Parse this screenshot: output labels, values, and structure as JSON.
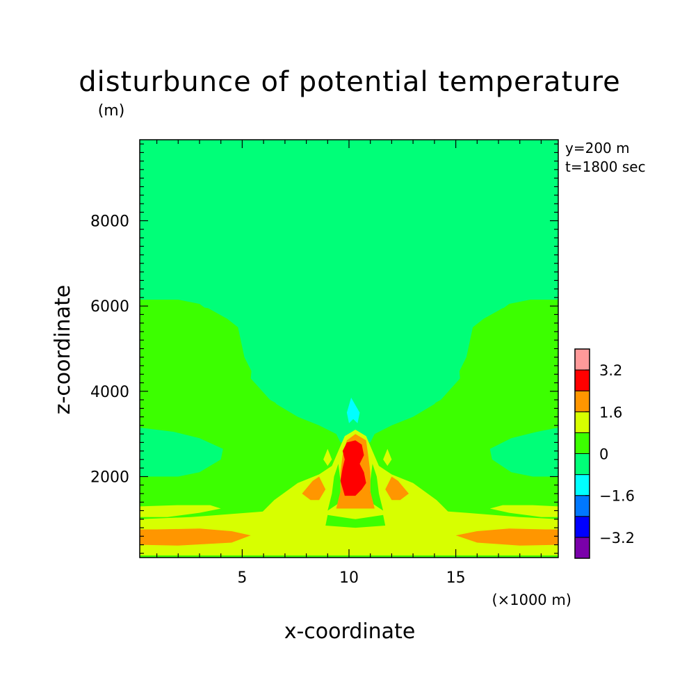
{
  "chart_data": {
    "type": "heatmap",
    "title": "disturbunce of potential temperature",
    "unit_label": "(m)",
    "xlabel": "x-coordinate",
    "ylabel": "z-coordinate",
    "x_multiplier_label": "(×1000 m)",
    "annotations": [
      "y=200 m",
      "t=1800 sec"
    ],
    "xlim": [
      0.2,
      19.8
    ],
    "ylim": [
      100,
      9900
    ],
    "x_ticks": [
      5,
      10,
      15
    ],
    "x_tick_labels": [
      "5",
      "10",
      "15"
    ],
    "y_ticks": [
      2000,
      4000,
      6000,
      8000
    ],
    "y_tick_labels": [
      "2000",
      "4000",
      "6000",
      "8000"
    ],
    "grid": false,
    "colorbar": {
      "levels": [
        -4.0,
        -3.2,
        -2.4,
        -1.6,
        -0.8,
        0.0,
        0.8,
        1.6,
        2.4,
        3.2,
        4.0
      ],
      "colors": [
        "#7a00aa",
        "#0000ff",
        "#0078ff",
        "#00ffff",
        "#00ff78",
        "#3cff00",
        "#d7ff00",
        "#ff9600",
        "#ff0000",
        "#ff9999"
      ],
      "tick_labels": [
        "3.2",
        "1.6",
        "0",
        "-1.6",
        "-3.2"
      ],
      "placement": "right"
    },
    "regions": [
      {
        "level": "-0.8 to 0",
        "color": "#00ff78",
        "outline": [
          [
            0.2,
            9900
          ],
          [
            19.8,
            9900
          ],
          [
            19.8,
            6150
          ],
          [
            18.5,
            6150
          ],
          [
            17.5,
            6050
          ],
          [
            16.7,
            5750
          ],
          [
            16.1,
            5500
          ],
          [
            15.6,
            4700
          ],
          [
            15.0,
            4200
          ],
          [
            13.6,
            3300
          ],
          [
            12.0,
            3100
          ],
          [
            11.0,
            2800
          ],
          [
            9.6,
            2800
          ],
          [
            8.4,
            3100
          ],
          [
            6.8,
            3300
          ],
          [
            5.4,
            4200
          ],
          [
            4.8,
            4700
          ],
          [
            4.3,
            5500
          ],
          [
            3.8,
            5750
          ],
          [
            3.0,
            6050
          ],
          [
            2.0,
            6150
          ],
          [
            0.2,
            6150
          ]
        ]
      },
      {
        "level": "0 to 0.8",
        "color": "#3cff00",
        "outline": [
          [
            0.2,
            1100
          ],
          [
            2.0,
            1150
          ],
          [
            4.5,
            1200
          ],
          [
            8.0,
            1300
          ],
          [
            12.5,
            1300
          ],
          [
            15.6,
            1200
          ],
          [
            18.0,
            1150
          ],
          [
            19.8,
            1100
          ],
          [
            19.8,
            6000
          ],
          [
            18.5,
            6050
          ],
          [
            17.2,
            5950
          ],
          [
            16.3,
            5700
          ],
          [
            15.8,
            5500
          ],
          [
            15.5,
            4800
          ],
          [
            15.0,
            4300
          ],
          [
            14.0,
            3700
          ],
          [
            13.0,
            3400
          ],
          [
            12.0,
            3200
          ],
          [
            11.2,
            3000
          ],
          [
            10.9,
            2700
          ],
          [
            9.7,
            2700
          ],
          [
            9.4,
            3000
          ],
          [
            8.6,
            3200
          ],
          [
            7.6,
            3400
          ],
          [
            6.6,
            3700
          ],
          [
            5.6,
            4300
          ],
          [
            5.1,
            4800
          ],
          [
            4.8,
            5500
          ],
          [
            4.3,
            5700
          ],
          [
            3.4,
            5950
          ],
          [
            2.0,
            6050
          ],
          [
            0.2,
            6000
          ]
        ]
      },
      {
        "level": "-0.8 to 0",
        "color": "#00ff78",
        "outline": [
          [
            5.8,
            9750
          ],
          [
            14.9,
            9750
          ],
          [
            15.0,
            9500
          ],
          [
            15.0,
            6200
          ],
          [
            14.7,
            6100
          ],
          [
            13.5,
            6250
          ],
          [
            12.0,
            6350
          ],
          [
            10.3,
            6400
          ],
          [
            8.5,
            6350
          ],
          [
            7.0,
            6250
          ],
          [
            6.0,
            6100
          ],
          [
            5.8,
            6200
          ]
        ]
      },
      {
        "level": "-0.8 to 0",
        "color": "#00ff78",
        "outline": [
          [
            5.6,
            5500
          ],
          [
            5.4,
            4300
          ],
          [
            6.3,
            3800
          ],
          [
            7.6,
            3450
          ],
          [
            8.8,
            3200
          ],
          [
            9.5,
            3000
          ],
          [
            9.8,
            2850
          ],
          [
            10.8,
            2850
          ],
          [
            11.1,
            3000
          ],
          [
            11.8,
            3200
          ],
          [
            13.0,
            3450
          ],
          [
            14.3,
            3800
          ],
          [
            15.2,
            4300
          ],
          [
            15.0,
            5500
          ],
          [
            13.0,
            5550
          ],
          [
            10.3,
            5550
          ],
          [
            7.6,
            5550
          ]
        ]
      },
      {
        "level": "-0.8 to 0",
        "color": "#00ff78",
        "outline": [
          [
            0.2,
            3150
          ],
          [
            1.8,
            3050
          ],
          [
            3.0,
            2900
          ],
          [
            4.1,
            2650
          ],
          [
            4.0,
            2400
          ],
          [
            3.0,
            2100
          ],
          [
            2.0,
            2000
          ],
          [
            0.2,
            2000
          ]
        ]
      },
      {
        "level": "-0.8 to 0",
        "color": "#00ff78",
        "outline": [
          [
            19.8,
            3150
          ],
          [
            18.8,
            3050
          ],
          [
            17.6,
            2900
          ],
          [
            16.6,
            2650
          ],
          [
            16.7,
            2400
          ],
          [
            17.6,
            2100
          ],
          [
            18.6,
            2000
          ],
          [
            19.8,
            2000
          ]
        ]
      },
      {
        "level": "-1.6 to -0.8",
        "color": "#00ffff",
        "outline": [
          [
            10.1,
            3850
          ],
          [
            10.5,
            3500
          ],
          [
            10.4,
            3250
          ],
          [
            10.2,
            3350
          ],
          [
            10.0,
            3250
          ],
          [
            9.9,
            3500
          ]
        ]
      },
      {
        "level": "0.8 to 1.6",
        "color": "#d7ff00",
        "outline": [
          [
            0.2,
            100
          ],
          [
            19.8,
            100
          ],
          [
            19.8,
            1000
          ],
          [
            18.0,
            1050
          ],
          [
            15.5,
            1150
          ],
          [
            12.8,
            1250
          ],
          [
            11.5,
            1350
          ],
          [
            10.3,
            1400
          ],
          [
            9.1,
            1350
          ],
          [
            7.8,
            1250
          ],
          [
            5.2,
            1150
          ],
          [
            2.6,
            1050
          ],
          [
            0.2,
            1000
          ]
        ]
      },
      {
        "level": "0.8 to 1.6",
        "color": "#d7ff00",
        "outline": [
          [
            0.2,
            1300
          ],
          [
            2.0,
            1330
          ],
          [
            3.5,
            1330
          ],
          [
            4.0,
            1250
          ],
          [
            3.0,
            1150
          ],
          [
            1.5,
            1050
          ],
          [
            0.2,
            1050
          ]
        ]
      },
      {
        "level": "0.8 to 1.6",
        "color": "#d7ff00",
        "outline": [
          [
            19.8,
            1300
          ],
          [
            18.6,
            1330
          ],
          [
            17.2,
            1330
          ],
          [
            16.6,
            1250
          ],
          [
            17.5,
            1150
          ],
          [
            19.0,
            1050
          ],
          [
            19.8,
            1050
          ]
        ]
      },
      {
        "level": "0.8 to 1.6",
        "color": "#d7ff00",
        "outline": [
          [
            5.8,
            1100
          ],
          [
            6.5,
            1450
          ],
          [
            7.6,
            1850
          ],
          [
            8.6,
            2050
          ],
          [
            9.2,
            2250
          ],
          [
            9.5,
            2600
          ],
          [
            9.8,
            2950
          ],
          [
            10.3,
            3100
          ],
          [
            10.8,
            2950
          ],
          [
            11.1,
            2600
          ],
          [
            11.4,
            2250
          ],
          [
            12.0,
            2050
          ],
          [
            13.0,
            1850
          ],
          [
            14.1,
            1450
          ],
          [
            14.8,
            1100
          ],
          [
            13.2,
            1000
          ],
          [
            11.2,
            800
          ],
          [
            10.3,
            750
          ],
          [
            9.4,
            800
          ],
          [
            7.4,
            1000
          ]
        ]
      },
      {
        "level": "0.8 to 1.6",
        "color": "#d7ff00",
        "outline": [
          [
            8.8,
            2400
          ],
          [
            9.0,
            2650
          ],
          [
            9.2,
            2400
          ],
          [
            9.0,
            2250
          ]
        ]
      },
      {
        "level": "0.8 to 1.6",
        "color": "#d7ff00",
        "outline": [
          [
            11.6,
            2400
          ],
          [
            11.8,
            2650
          ],
          [
            12.0,
            2400
          ],
          [
            11.8,
            2250
          ]
        ]
      },
      {
        "level": "0 to 0.8",
        "color": "#3cff00",
        "outline": [
          [
            0.2,
            100
          ],
          [
            19.8,
            100
          ],
          [
            19.8,
            150
          ],
          [
            0.2,
            150
          ]
        ]
      },
      {
        "level": "0 to 0.8",
        "color": "#3cff00",
        "outline": [
          [
            9.0,
            1100
          ],
          [
            10.3,
            1000
          ],
          [
            11.6,
            1100
          ],
          [
            11.7,
            850
          ],
          [
            10.3,
            800
          ],
          [
            8.9,
            850
          ]
        ]
      },
      {
        "level": "0 to 0.8",
        "color": "#3cff00",
        "outline": [
          [
            9.0,
            1200
          ],
          [
            9.2,
            1600
          ],
          [
            9.3,
            2000
          ],
          [
            9.5,
            2300
          ],
          [
            9.6,
            1900
          ],
          [
            9.6,
            1400
          ]
        ]
      },
      {
        "level": "0 to 0.8",
        "color": "#3cff00",
        "outline": [
          [
            11.6,
            1200
          ],
          [
            11.4,
            1600
          ],
          [
            11.3,
            2000
          ],
          [
            11.1,
            2300
          ],
          [
            11.0,
            1900
          ],
          [
            11.0,
            1400
          ]
        ]
      },
      {
        "level": "1.6 to 2.4",
        "color": "#ff9600",
        "outline": [
          [
            0.2,
            400
          ],
          [
            2.0,
            380
          ],
          [
            4.5,
            450
          ],
          [
            5.4,
            620
          ],
          [
            4.5,
            720
          ],
          [
            3.0,
            780
          ],
          [
            1.0,
            760
          ],
          [
            0.2,
            760
          ]
        ]
      },
      {
        "level": "1.6 to 2.4",
        "color": "#ff9600",
        "outline": [
          [
            19.8,
            400
          ],
          [
            18.0,
            380
          ],
          [
            16.0,
            450
          ],
          [
            15.0,
            620
          ],
          [
            16.0,
            720
          ],
          [
            17.5,
            780
          ],
          [
            19.2,
            760
          ],
          [
            19.8,
            760
          ]
        ]
      },
      {
        "level": "1.6 to 2.4",
        "color": "#ff9600",
        "outline": [
          [
            9.4,
            1250
          ],
          [
            9.6,
            1650
          ],
          [
            9.6,
            2100
          ],
          [
            9.7,
            2500
          ],
          [
            9.9,
            2850
          ],
          [
            10.3,
            3000
          ],
          [
            10.8,
            2850
          ],
          [
            10.9,
            2500
          ],
          [
            11.0,
            2100
          ],
          [
            11.0,
            1650
          ],
          [
            11.2,
            1250
          ]
        ]
      },
      {
        "level": "1.6 to 2.4",
        "color": "#ff9600",
        "outline": [
          [
            7.8,
            1600
          ],
          [
            8.3,
            1900
          ],
          [
            8.6,
            2000
          ],
          [
            8.9,
            1700
          ],
          [
            8.6,
            1450
          ],
          [
            8.2,
            1450
          ]
        ]
      },
      {
        "level": "1.6 to 2.4",
        "color": "#ff9600",
        "outline": [
          [
            12.8,
            1600
          ],
          [
            12.3,
            1900
          ],
          [
            12.0,
            2000
          ],
          [
            11.7,
            1700
          ],
          [
            12.0,
            1450
          ],
          [
            12.4,
            1450
          ]
        ]
      },
      {
        "level": "2.4 to 3.2",
        "color": "#ff0000",
        "outline": [
          [
            9.8,
            1550
          ],
          [
            9.6,
            1900
          ],
          [
            9.7,
            2200
          ],
          [
            9.8,
            2400
          ],
          [
            9.7,
            2600
          ],
          [
            9.9,
            2800
          ],
          [
            10.3,
            2850
          ],
          [
            10.6,
            2750
          ],
          [
            10.7,
            2500
          ],
          [
            10.5,
            2300
          ],
          [
            10.7,
            2100
          ],
          [
            10.8,
            1850
          ],
          [
            10.6,
            1700
          ],
          [
            10.3,
            1550
          ]
        ]
      }
    ]
  }
}
